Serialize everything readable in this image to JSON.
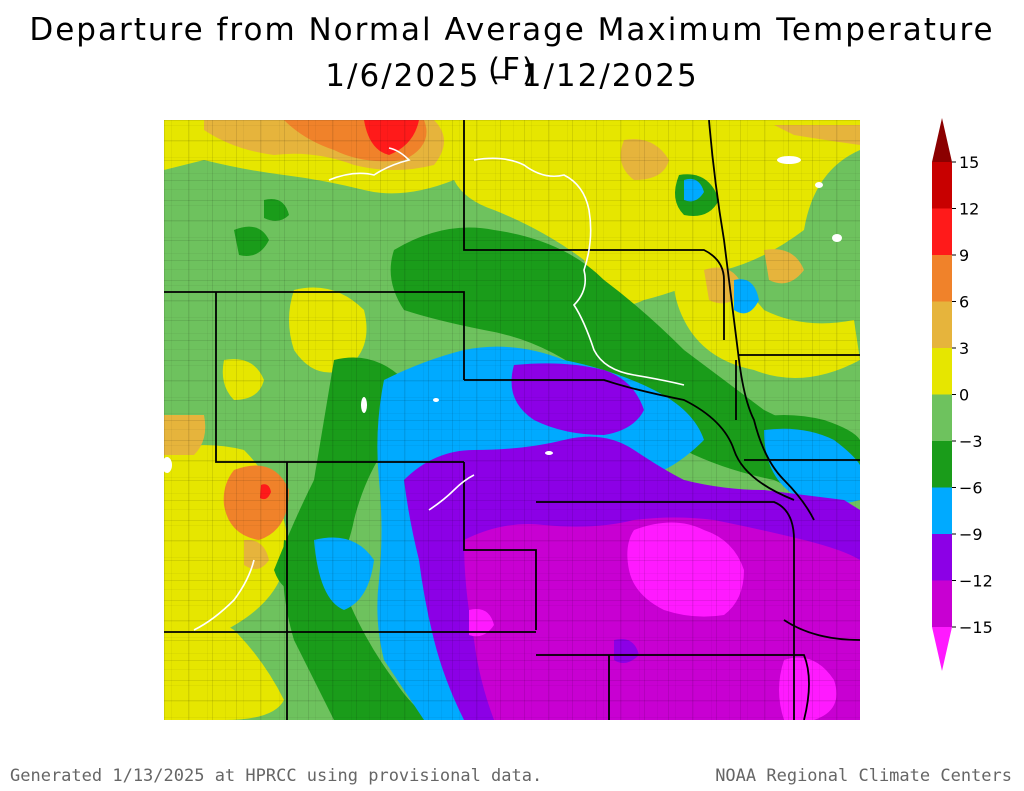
{
  "title": {
    "line1": "Departure from Normal Average Maximum Temperature (F)",
    "line2": "1/6/2025 – 1/12/2025"
  },
  "legend": {
    "ticks": [
      "15",
      "12",
      "9",
      "6",
      "3",
      "0",
      "−3",
      "−6",
      "−9",
      "−12",
      "−15"
    ],
    "bins": [
      {
        "from": 12,
        "to": 15,
        "color": "#c80000"
      },
      {
        "from": 9,
        "to": 12,
        "color": "#ff1a1a"
      },
      {
        "from": 6,
        "to": 9,
        "color": "#f0822a"
      },
      {
        "from": 3,
        "to": 6,
        "color": "#e6b43c"
      },
      {
        "from": 0,
        "to": 3,
        "color": "#e6e600"
      },
      {
        "from": -3,
        "to": 0,
        "color": "#6ec25e"
      },
      {
        "from": -6,
        "to": -3,
        "color": "#1a9c1a"
      },
      {
        "from": -9,
        "to": -6,
        "color": "#00aaff"
      },
      {
        "from": -12,
        "to": -9,
        "color": "#8c00e6"
      },
      {
        "from": -15,
        "to": -12,
        "color": "#c800d2"
      }
    ],
    "over_color": "#8b0000",
    "under_color": "#ff1aff"
  },
  "footer": {
    "left": "Generated 1/13/2025 at HPRCC using provisional data.",
    "right": "NOAA Regional Climate Centers"
  }
}
